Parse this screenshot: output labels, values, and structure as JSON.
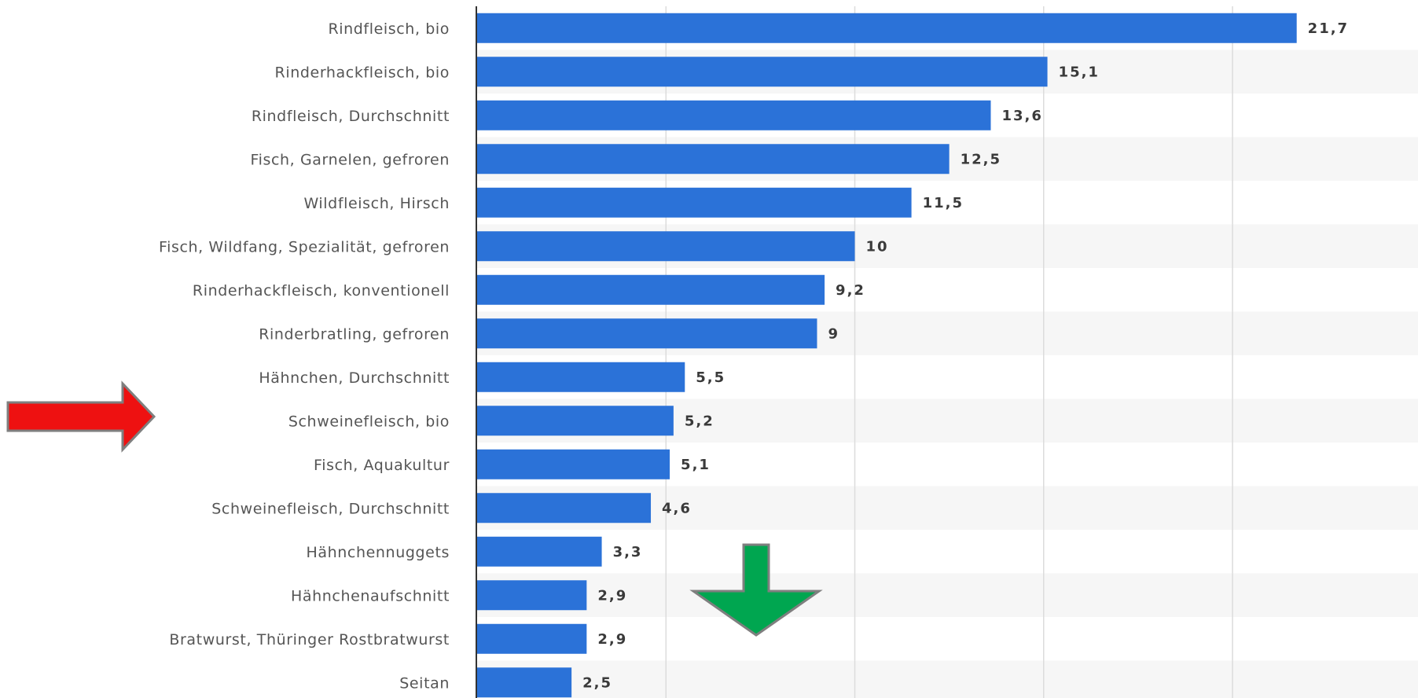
{
  "chart_data": {
    "type": "bar",
    "orientation": "horizontal",
    "categories": [
      "Rindfleisch, bio",
      "Rinderhackfleisch, bio",
      "Rindfleisch, Durchschnitt",
      "Fisch, Garnelen, gefroren",
      "Wildfleisch, Hirsch",
      "Fisch, Wildfang, Spezialität, gefroren",
      "Rinderhackfleisch, konventionell",
      "Rinderbratling, gefroren",
      "Hähnchen, Durchschnitt",
      "Schweinefleisch, bio",
      "Fisch, Aquakultur",
      "Schweinefleisch, Durchschnitt",
      "Hähnchennuggets",
      "Hähnchenaufschnitt",
      "Bratwurst, Thüringer Rostbratwurst",
      "Seitan"
    ],
    "values": [
      21.7,
      15.1,
      13.6,
      12.5,
      11.5,
      10,
      9.2,
      9,
      5.5,
      5.2,
      5.1,
      4.6,
      3.3,
      2.9,
      2.9,
      2.5
    ],
    "value_labels": [
      "21,7",
      "15,1",
      "13,6",
      "12,5",
      "11,5",
      "10",
      "9,2",
      "9",
      "5,5",
      "5,2",
      "5,1",
      "4,6",
      "3,3",
      "2,9",
      "2,9",
      "2,5"
    ],
    "xlim": [
      0,
      25
    ],
    "grid": true,
    "bar_color": "#2b72d8",
    "title": "",
    "xlabel": "",
    "ylabel": ""
  },
  "annotations": {
    "highlight_arrow": {
      "color": "#ee1111",
      "direction": "right",
      "points_to": "Schweinefleisch, bio"
    },
    "down_arrow": {
      "color": "#00a650",
      "direction": "down"
    }
  }
}
